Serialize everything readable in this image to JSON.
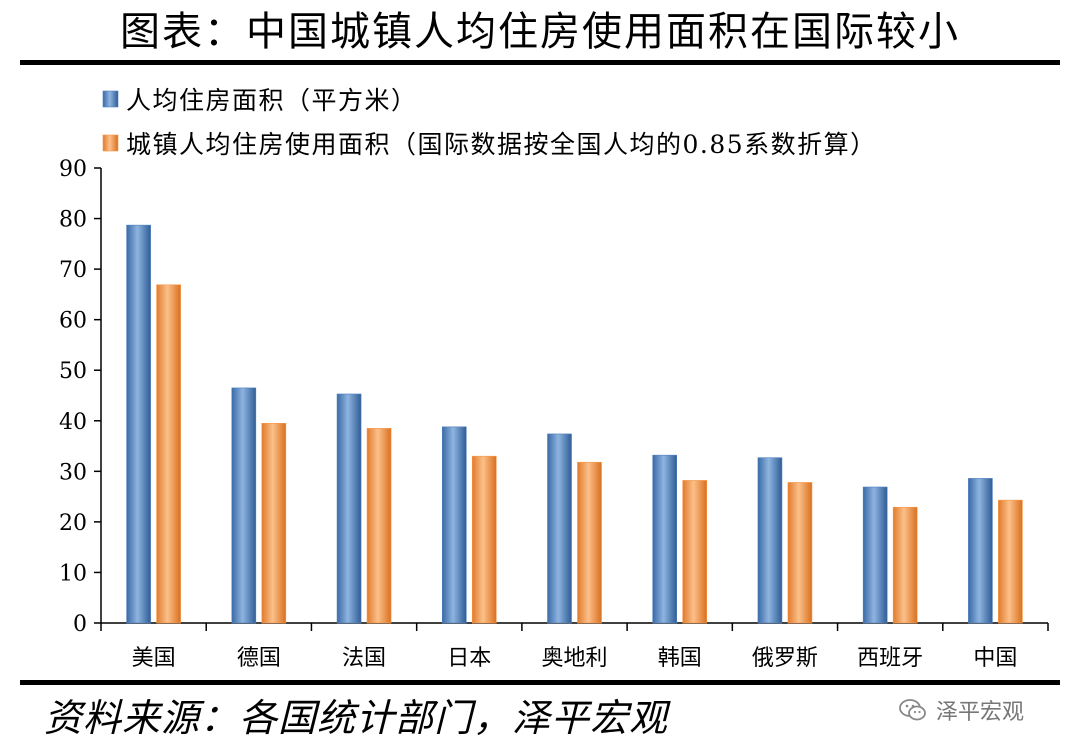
{
  "header": {
    "title": "图表：中国城镇人均住房使用面积在国际较小"
  },
  "footer": {
    "source": "资料来源：各国统计部门，泽平宏观",
    "watermark": "泽平宏观"
  },
  "colors": {
    "series1": "#4f81bd",
    "series2": "#f79646"
  },
  "chart_data": {
    "type": "bar",
    "title": "",
    "categories": [
      "美国",
      "德国",
      "法国",
      "日本",
      "奥地利",
      "韩国",
      "俄罗斯",
      "西班牙",
      "中国"
    ],
    "series": [
      {
        "name": "人均住房面积（平方米）",
        "values": [
          78.7,
          46.5,
          45.3,
          38.8,
          37.4,
          33.2,
          32.7,
          26.9,
          28.6
        ]
      },
      {
        "name": "城镇人均住房使用面积（国际数据按全国人均的0.85系数折算）",
        "values": [
          66.9,
          39.5,
          38.5,
          33.0,
          31.8,
          28.2,
          27.8,
          22.9,
          24.3
        ]
      }
    ],
    "yticks": [
      0,
      10,
      20,
      30,
      40,
      50,
      60,
      70,
      80,
      90
    ],
    "ylim": [
      0,
      90
    ],
    "legend_position": "top-left",
    "grid": false
  }
}
